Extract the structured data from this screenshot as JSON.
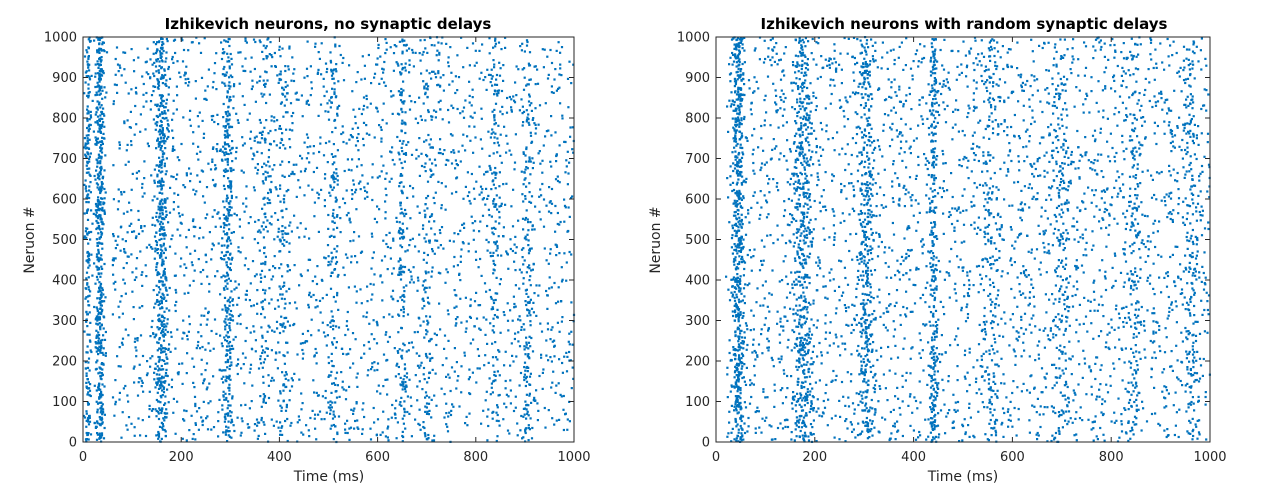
{
  "colors": {
    "marker": "#0072BD",
    "axis": "#262626",
    "background": "#ffffff"
  },
  "chart_data": [
    {
      "type": "scatter",
      "title": "Izhikevich neurons, no synaptic delays",
      "xlabel": "Time (ms)",
      "ylabel": "Neruon #",
      "xlim": [
        0,
        1000
      ],
      "ylim": [
        0,
        1000
      ],
      "xticks": [
        0,
        200,
        400,
        600,
        800,
        1000
      ],
      "yticks": [
        0,
        100,
        200,
        300,
        400,
        500,
        600,
        700,
        800,
        900,
        1000
      ],
      "grid": false,
      "series": [
        {
          "marker_color": "#0072BD",
          "bursts": [
            {
              "t": 10,
              "w": 6,
              "n": 240
            },
            {
              "t": 35,
              "w": 8,
              "n": 520
            },
            {
              "t": 160,
              "w": 10,
              "n": 480
            },
            {
              "t": 295,
              "w": 8,
              "n": 300
            },
            {
              "t": 370,
              "w": 10,
              "n": 110
            },
            {
              "t": 410,
              "w": 10,
              "n": 110
            },
            {
              "t": 510,
              "w": 8,
              "n": 120
            },
            {
              "t": 650,
              "w": 8,
              "n": 140
            },
            {
              "t": 700,
              "w": 10,
              "n": 110
            },
            {
              "t": 840,
              "w": 10,
              "n": 110
            },
            {
              "t": 905,
              "w": 8,
              "n": 140
            }
          ],
          "background_points": 2600,
          "background_start": 60
        }
      ]
    },
    {
      "type": "scatter",
      "title": "Izhikevich neurons with random synaptic delays",
      "xlabel": "Time (ms)",
      "ylabel": "Neruon #",
      "xlim": [
        0,
        1000
      ],
      "ylim": [
        0,
        1000
      ],
      "xticks": [
        0,
        200,
        400,
        600,
        800,
        1000
      ],
      "yticks": [
        0,
        100,
        200,
        300,
        400,
        500,
        600,
        700,
        800,
        900,
        1000
      ],
      "grid": false,
      "series": [
        {
          "marker_color": "#0072BD",
          "bursts": [
            {
              "t": 45,
              "w": 9,
              "n": 560
            },
            {
              "t": 175,
              "w": 14,
              "n": 500
            },
            {
              "t": 305,
              "w": 12,
              "n": 360
            },
            {
              "t": 440,
              "w": 6,
              "n": 260
            },
            {
              "t": 560,
              "w": 14,
              "n": 170
            },
            {
              "t": 700,
              "w": 14,
              "n": 170
            },
            {
              "t": 845,
              "w": 14,
              "n": 170
            },
            {
              "t": 960,
              "w": 10,
              "n": 150
            }
          ],
          "background_points": 3000,
          "background_start": 20
        }
      ]
    }
  ]
}
